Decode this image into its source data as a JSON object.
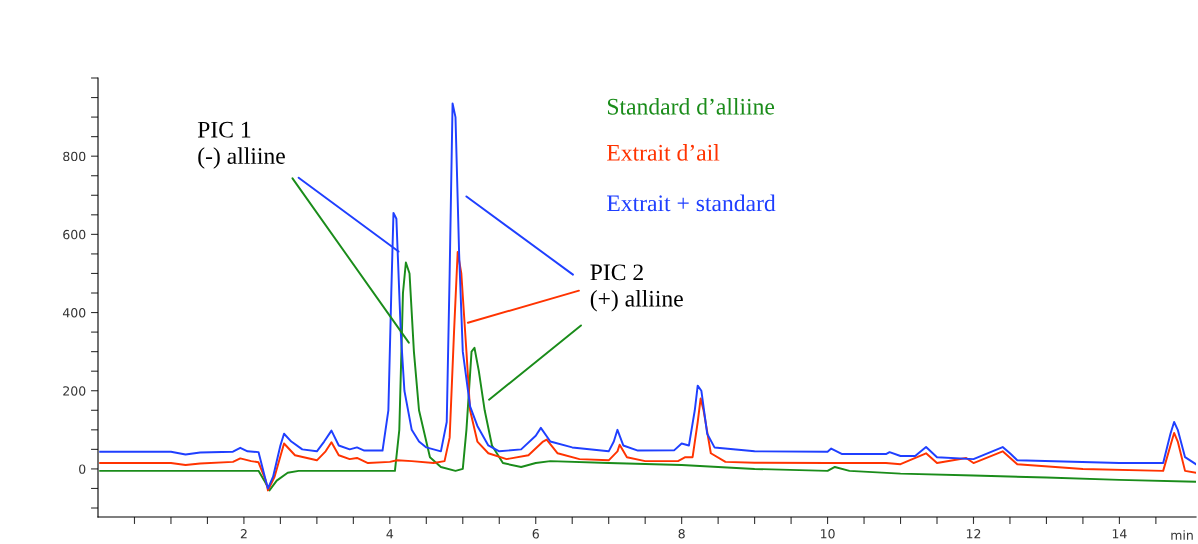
{
  "chart_data": {
    "type": "line",
    "xlabel": "min",
    "xlim": [
      0,
      15.05
    ],
    "ylim": [
      -123,
      1000
    ],
    "xticks": [
      {
        "value": 0.5,
        "label": null
      },
      {
        "value": 1,
        "label": null
      },
      {
        "value": 1.5,
        "label": null
      },
      2,
      {
        "value": 2.5,
        "label": null
      },
      {
        "value": 3,
        "label": null
      },
      {
        "value": 3.5,
        "label": null
      },
      4,
      {
        "value": 4.5,
        "label": null
      },
      {
        "value": 5,
        "label": null
      },
      {
        "value": 5.5,
        "label": null
      },
      6,
      {
        "value": 6.5,
        "label": null
      },
      {
        "value": 7,
        "label": null
      },
      {
        "value": 7.5,
        "label": null
      },
      8,
      {
        "value": 8.5,
        "label": null
      },
      {
        "value": 9,
        "label": null
      },
      {
        "value": 9.5,
        "label": null
      },
      10,
      {
        "value": 10.5,
        "label": null
      },
      {
        "value": 11,
        "label": null
      },
      {
        "value": 11.5,
        "label": null
      },
      12,
      {
        "value": 12.5,
        "label": null
      },
      {
        "value": 13,
        "label": null
      },
      {
        "value": 13.5,
        "label": null
      },
      14,
      {
        "value": 14.5,
        "label": null
      }
    ],
    "yticks": [
      {
        "value": -100,
        "label": null
      },
      {
        "value": -50,
        "label": null
      },
      0,
      {
        "value": 50,
        "label": null
      },
      {
        "value": 100,
        "label": null
      },
      {
        "value": 150,
        "label": null
      },
      200,
      {
        "value": 250,
        "label": null
      },
      {
        "value": 300,
        "label": null
      },
      {
        "value": 350,
        "label": null
      },
      400,
      {
        "value": 450,
        "label": null
      },
      {
        "value": 500,
        "label": null
      },
      {
        "value": 550,
        "label": null
      },
      600,
      {
        "value": 650,
        "label": null
      },
      {
        "value": 700,
        "label": null
      },
      {
        "value": 750,
        "label": null
      },
      800,
      {
        "value": 850,
        "label": null
      },
      {
        "value": 900,
        "label": null
      },
      {
        "value": 950,
        "label": null
      },
      {
        "value": 1000,
        "label": null
      }
    ],
    "grid": false,
    "legend": false,
    "marker": "none",
    "line_style": "solid",
    "annotations": [
      {
        "text": "PIC 1\n(-) alliine",
        "x": 4.26,
        "y": 323
      },
      {
        "text": "PIC 2\n(+) alliine",
        "x": 5.07,
        "y": 374
      }
    ],
    "series": [
      {
        "name": "Standard d’alliine",
        "color": "#1a8c1a",
        "x": [
          0.03,
          2.2,
          2.28,
          2.35,
          2.45,
          2.6,
          2.75,
          3.0,
          3.9,
          4.07,
          4.13,
          4.18,
          4.22,
          4.27,
          4.33,
          4.4,
          4.55,
          4.7,
          4.9,
          5.0,
          5.05,
          5.12,
          5.16,
          5.22,
          5.3,
          5.4,
          5.55,
          5.8,
          6.0,
          6.2,
          7.0,
          8.0,
          9.0,
          10.0,
          10.1,
          10.3,
          11.0,
          12.0,
          13.0,
          14.0,
          15.05
        ],
        "values": [
          -5,
          -5,
          -30,
          -55,
          -30,
          -10,
          -5,
          -5,
          -5,
          -5,
          100,
          450,
          528,
          500,
          300,
          150,
          30,
          5,
          -5,
          0,
          100,
          300,
          310,
          250,
          150,
          60,
          15,
          5,
          15,
          20,
          15,
          10,
          0,
          -5,
          5,
          -5,
          -12,
          -17,
          -22,
          -28,
          -33
        ]
      },
      {
        "name": "Extrait d’ail",
        "color": "#ff3300",
        "x": [
          0.03,
          1.0,
          1.2,
          1.4,
          1.85,
          1.95,
          2.1,
          2.2,
          2.3,
          2.33,
          2.42,
          2.55,
          2.7,
          3.0,
          3.12,
          3.2,
          3.3,
          3.45,
          3.55,
          3.7,
          4.0,
          4.1,
          4.3,
          4.6,
          4.75,
          4.82,
          4.88,
          4.93,
          4.98,
          5.05,
          5.1,
          5.2,
          5.35,
          5.6,
          5.9,
          6.1,
          6.15,
          6.3,
          6.6,
          7.0,
          7.12,
          7.15,
          7.25,
          7.5,
          7.95,
          8.05,
          8.15,
          8.22,
          8.26,
          8.3,
          8.4,
          8.6,
          9.0,
          10.0,
          10.8,
          11.0,
          11.35,
          11.5,
          11.9,
          12.0,
          12.4,
          12.6,
          13.5,
          14.6,
          14.7,
          14.75,
          14.8,
          14.9,
          15.05
        ],
        "values": [
          15,
          15,
          10,
          14,
          18,
          27,
          20,
          17,
          -30,
          -55,
          -20,
          65,
          35,
          22,
          45,
          68,
          35,
          25,
          28,
          15,
          18,
          22,
          20,
          15,
          20,
          80,
          350,
          555,
          500,
          300,
          150,
          70,
          40,
          25,
          35,
          70,
          75,
          40,
          25,
          22,
          45,
          62,
          30,
          20,
          20,
          30,
          30,
          120,
          180,
          150,
          40,
          18,
          16,
          15,
          15,
          12,
          40,
          15,
          28,
          15,
          45,
          12,
          0,
          -5,
          60,
          92,
          70,
          -5,
          -10
        ]
      },
      {
        "name": "Extrait + standard",
        "color": "#1f3fff",
        "x": [
          0.03,
          1.0,
          1.2,
          1.4,
          1.85,
          1.95,
          2.05,
          2.2,
          2.3,
          2.33,
          2.4,
          2.5,
          2.55,
          2.65,
          2.8,
          3.0,
          3.1,
          3.2,
          3.3,
          3.45,
          3.55,
          3.65,
          3.9,
          3.98,
          4.02,
          4.05,
          4.09,
          4.15,
          4.2,
          4.3,
          4.4,
          4.5,
          4.7,
          4.78,
          4.82,
          4.86,
          4.9,
          4.95,
          5.0,
          5.1,
          5.2,
          5.35,
          5.5,
          5.8,
          6.0,
          6.07,
          6.2,
          6.5,
          7.0,
          7.07,
          7.12,
          7.2,
          7.4,
          7.9,
          8.0,
          8.1,
          8.18,
          8.22,
          8.27,
          8.35,
          8.45,
          9.0,
          10.0,
          10.05,
          10.2,
          10.8,
          10.85,
          11.0,
          11.2,
          11.35,
          11.5,
          12.0,
          12.4,
          12.5,
          12.6,
          14.0,
          14.6,
          14.7,
          14.75,
          14.8,
          14.9,
          15.05
        ],
        "values": [
          44,
          44,
          37,
          42,
          44,
          54,
          45,
          43,
          -30,
          -50,
          -20,
          60,
          90,
          70,
          50,
          45,
          70,
          98,
          60,
          50,
          55,
          47,
          47,
          150,
          450,
          655,
          640,
          350,
          200,
          100,
          70,
          55,
          45,
          120,
          500,
          935,
          900,
          550,
          300,
          160,
          110,
          60,
          45,
          50,
          85,
          105,
          70,
          55,
          45,
          70,
          100,
          60,
          47,
          48,
          65,
          60,
          150,
          213,
          200,
          90,
          55,
          45,
          44,
          52,
          38,
          38,
          43,
          33,
          33,
          56,
          30,
          25,
          56,
          40,
          22,
          15,
          15,
          90,
          120,
          100,
          30,
          12
        ]
      }
    ]
  }
}
